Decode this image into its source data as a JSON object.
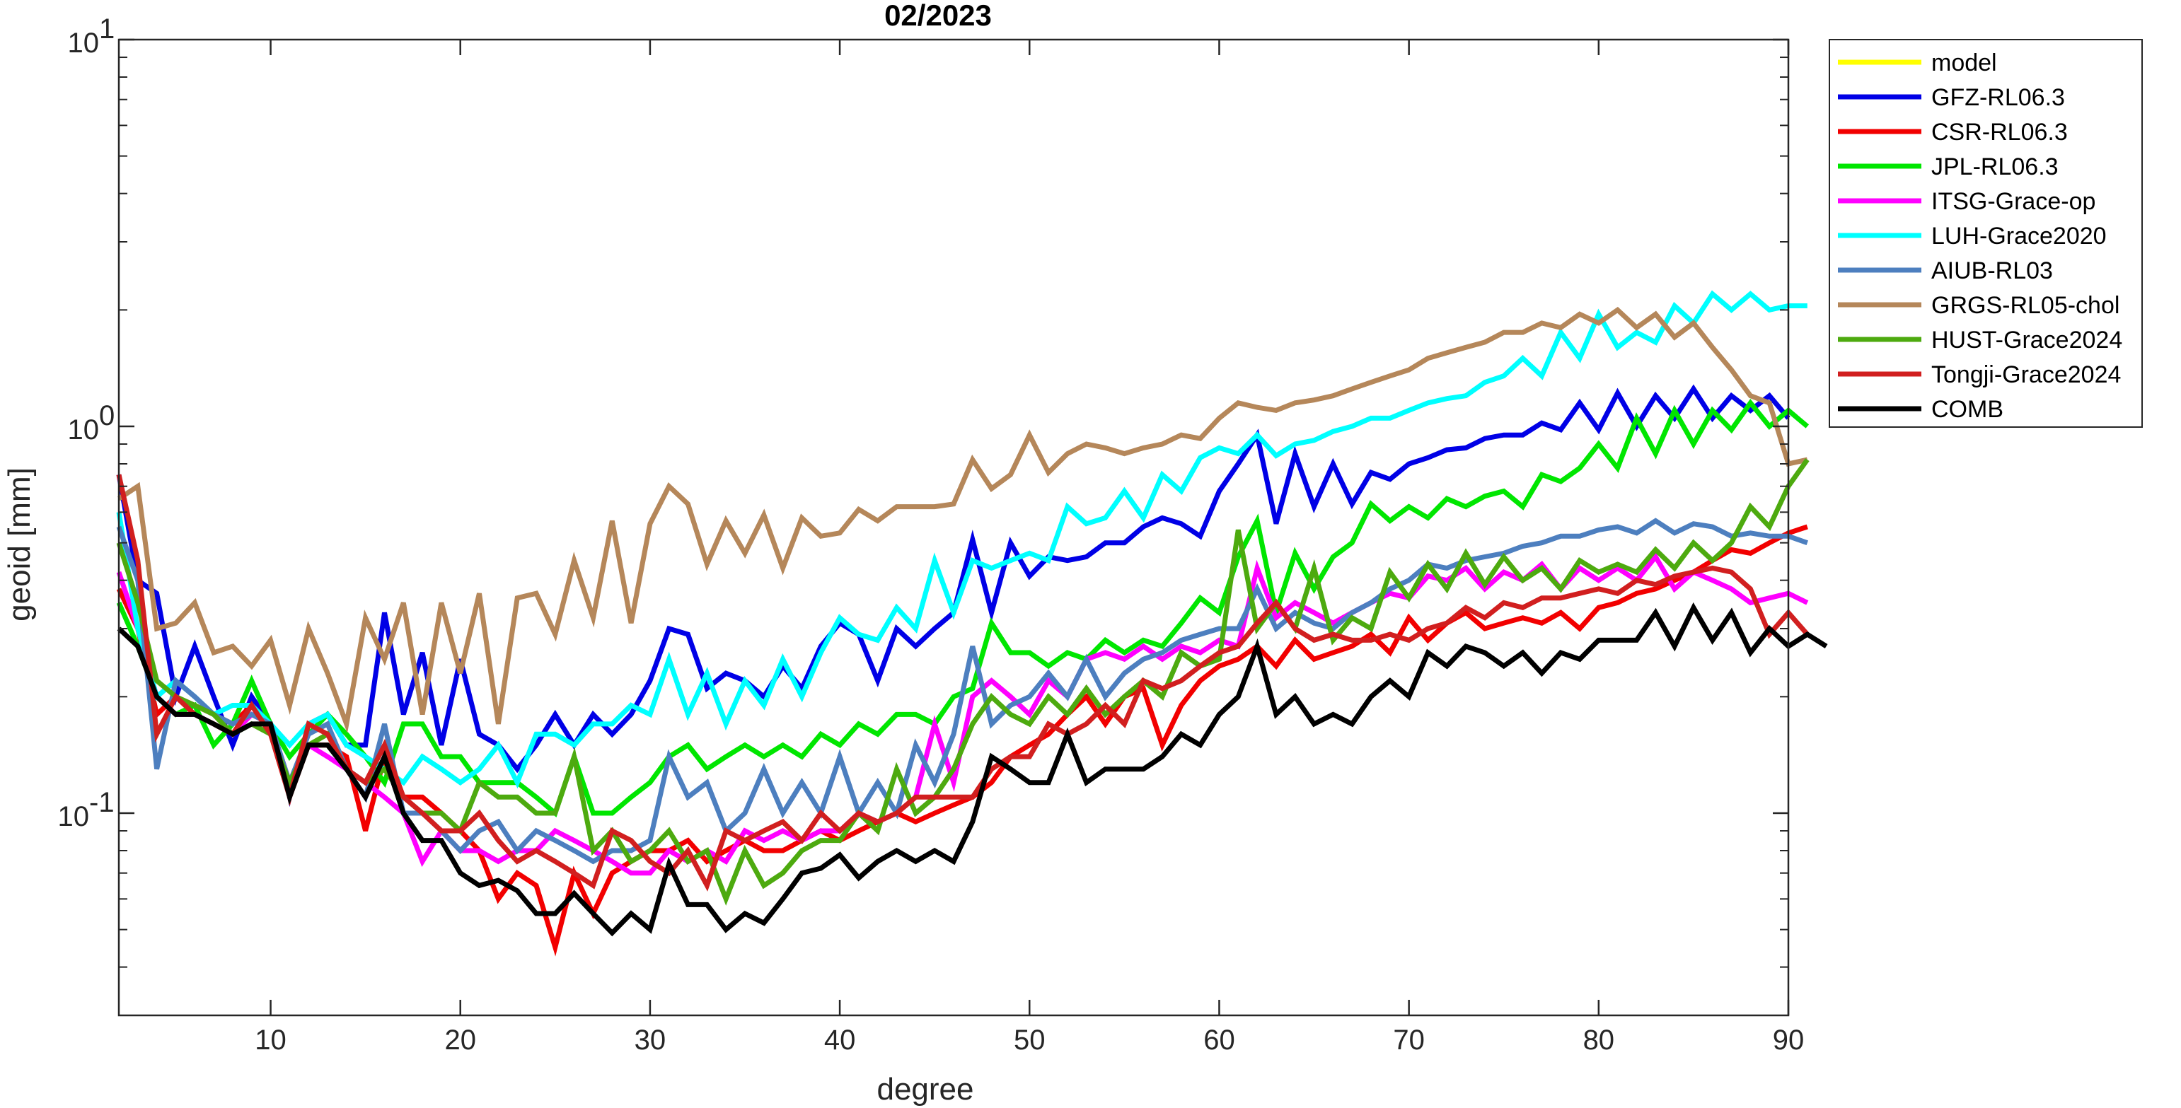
{
  "chart_data": {
    "type": "line",
    "title": "02/2023",
    "xlabel": "degree",
    "ylabel": "geoid [mm]",
    "xlim": [
      2,
      90
    ],
    "ylim": [
      0.03,
      10
    ],
    "yscale": "log",
    "xticks": [
      10,
      20,
      30,
      40,
      50,
      60,
      70,
      80,
      90
    ],
    "yticks": [
      {
        "value": 0.1,
        "base": "10",
        "exp": "-1"
      },
      {
        "value": 1,
        "base": "10",
        "exp": "0"
      },
      {
        "value": 10,
        "base": "10",
        "exp": "1"
      }
    ],
    "grid": false,
    "legend": "outside-right",
    "series": [
      {
        "name": "model",
        "color": "#FFFF00",
        "x": [],
        "values": []
      },
      {
        "name": "GFZ-RL06.3",
        "color": "#0000E6",
        "x_start": 2,
        "values": [
          0.75,
          0.4,
          0.37,
          0.2,
          0.27,
          0.2,
          0.15,
          0.2,
          0.17,
          0.11,
          0.17,
          0.18,
          0.15,
          0.15,
          0.33,
          0.18,
          0.26,
          0.15,
          0.25,
          0.16,
          0.15,
          0.13,
          0.15,
          0.18,
          0.15,
          0.18,
          0.16,
          0.18,
          0.22,
          0.3,
          0.29,
          0.21,
          0.23,
          0.22,
          0.2,
          0.24,
          0.21,
          0.27,
          0.31,
          0.29,
          0.22,
          0.3,
          0.27,
          0.3,
          0.33,
          0.51,
          0.33,
          0.5,
          0.41,
          0.46,
          0.45,
          0.46,
          0.5,
          0.5,
          0.55,
          0.58,
          0.56,
          0.52,
          0.68,
          0.8,
          0.95,
          0.56,
          0.85,
          0.62,
          0.8,
          0.63,
          0.76,
          0.73,
          0.8,
          0.83,
          0.87,
          0.88,
          0.93,
          0.95,
          0.95,
          1.02,
          0.98,
          1.15,
          0.98,
          1.22,
          1.0,
          1.2,
          1.05,
          1.25,
          1.05,
          1.2,
          1.1,
          1.2,
          1.05
        ]
      },
      {
        "name": "CSR-RL06.3",
        "color": "#F20000",
        "x_start": 2,
        "values": [
          0.38,
          0.3,
          0.18,
          0.2,
          0.19,
          0.18,
          0.17,
          0.19,
          0.17,
          0.11,
          0.15,
          0.15,
          0.14,
          0.09,
          0.14,
          0.11,
          0.11,
          0.1,
          0.09,
          0.08,
          0.06,
          0.07,
          0.065,
          0.045,
          0.07,
          0.055,
          0.07,
          0.075,
          0.08,
          0.08,
          0.085,
          0.075,
          0.08,
          0.085,
          0.08,
          0.08,
          0.085,
          0.09,
          0.085,
          0.09,
          0.095,
          0.1,
          0.095,
          0.1,
          0.105,
          0.11,
          0.12,
          0.14,
          0.15,
          0.16,
          0.18,
          0.2,
          0.17,
          0.2,
          0.21,
          0.15,
          0.19,
          0.22,
          0.24,
          0.25,
          0.27,
          0.24,
          0.28,
          0.25,
          0.26,
          0.27,
          0.29,
          0.26,
          0.32,
          0.28,
          0.31,
          0.33,
          0.3,
          0.31,
          0.32,
          0.31,
          0.33,
          0.3,
          0.34,
          0.35,
          0.37,
          0.38,
          0.4,
          0.42,
          0.45,
          0.48,
          0.47,
          0.5,
          0.53,
          0.55
        ]
      },
      {
        "name": "JPL-RL06.3",
        "color": "#00E600",
        "x_start": 2,
        "values": [
          0.35,
          0.27,
          0.2,
          0.18,
          0.19,
          0.15,
          0.17,
          0.22,
          0.17,
          0.14,
          0.16,
          0.18,
          0.16,
          0.14,
          0.12,
          0.17,
          0.17,
          0.14,
          0.14,
          0.12,
          0.12,
          0.12,
          0.11,
          0.1,
          0.14,
          0.1,
          0.1,
          0.11,
          0.12,
          0.14,
          0.15,
          0.13,
          0.14,
          0.15,
          0.14,
          0.15,
          0.14,
          0.16,
          0.15,
          0.17,
          0.16,
          0.18,
          0.18,
          0.17,
          0.2,
          0.21,
          0.31,
          0.26,
          0.26,
          0.24,
          0.26,
          0.25,
          0.28,
          0.26,
          0.28,
          0.27,
          0.31,
          0.36,
          0.33,
          0.46,
          0.57,
          0.33,
          0.47,
          0.38,
          0.46,
          0.5,
          0.63,
          0.57,
          0.62,
          0.58,
          0.65,
          0.62,
          0.66,
          0.68,
          0.62,
          0.75,
          0.72,
          0.78,
          0.9,
          0.78,
          1.05,
          0.85,
          1.1,
          0.9,
          1.1,
          0.98,
          1.15,
          1.0,
          1.1,
          1.0
        ]
      },
      {
        "name": "ITSG-Grace-op",
        "color": "#FF00FF",
        "x_start": 2,
        "values": [
          0.42,
          0.3,
          0.2,
          0.18,
          0.18,
          0.17,
          0.16,
          0.18,
          0.17,
          0.12,
          0.15,
          0.14,
          0.13,
          0.12,
          0.11,
          0.1,
          0.075,
          0.09,
          0.08,
          0.08,
          0.075,
          0.08,
          0.08,
          0.09,
          0.085,
          0.08,
          0.075,
          0.07,
          0.07,
          0.08,
          0.075,
          0.08,
          0.075,
          0.09,
          0.085,
          0.09,
          0.085,
          0.09,
          0.09,
          0.1,
          0.095,
          0.1,
          0.11,
          0.17,
          0.12,
          0.2,
          0.22,
          0.2,
          0.18,
          0.22,
          0.2,
          0.25,
          0.26,
          0.25,
          0.27,
          0.25,
          0.27,
          0.26,
          0.28,
          0.27,
          0.43,
          0.32,
          0.35,
          0.33,
          0.31,
          0.33,
          0.35,
          0.37,
          0.36,
          0.41,
          0.4,
          0.43,
          0.38,
          0.42,
          0.4,
          0.44,
          0.38,
          0.43,
          0.4,
          0.43,
          0.4,
          0.46,
          0.38,
          0.42,
          0.4,
          0.38,
          0.35,
          0.36,
          0.37,
          0.35
        ]
      },
      {
        "name": "LUH-Grace2020",
        "color": "#00FFFF",
        "x_start": 2,
        "values": [
          0.6,
          0.3,
          0.2,
          0.22,
          0.2,
          0.18,
          0.19,
          0.19,
          0.17,
          0.15,
          0.17,
          0.18,
          0.15,
          0.14,
          0.13,
          0.12,
          0.14,
          0.13,
          0.12,
          0.13,
          0.15,
          0.12,
          0.16,
          0.16,
          0.15,
          0.17,
          0.17,
          0.19,
          0.18,
          0.25,
          0.18,
          0.23,
          0.17,
          0.22,
          0.19,
          0.25,
          0.2,
          0.26,
          0.32,
          0.29,
          0.28,
          0.34,
          0.3,
          0.45,
          0.33,
          0.45,
          0.43,
          0.45,
          0.47,
          0.45,
          0.62,
          0.56,
          0.58,
          0.68,
          0.58,
          0.75,
          0.68,
          0.83,
          0.88,
          0.85,
          0.95,
          0.84,
          0.9,
          0.92,
          0.97,
          1.0,
          1.05,
          1.05,
          1.1,
          1.15,
          1.18,
          1.2,
          1.3,
          1.35,
          1.5,
          1.35,
          1.75,
          1.5,
          1.95,
          1.6,
          1.75,
          1.65,
          2.05,
          1.85,
          2.2,
          2.0,
          2.2,
          2.0,
          2.05,
          2.05
        ]
      },
      {
        "name": "AIUB-RL03",
        "color": "#4D7FBF",
        "x_start": 2,
        "values": [
          0.55,
          0.4,
          0.13,
          0.22,
          0.2,
          0.18,
          0.17,
          0.18,
          0.17,
          0.12,
          0.16,
          0.17,
          0.13,
          0.11,
          0.17,
          0.1,
          0.1,
          0.09,
          0.08,
          0.09,
          0.095,
          0.08,
          0.09,
          0.085,
          0.08,
          0.075,
          0.08,
          0.08,
          0.085,
          0.14,
          0.11,
          0.12,
          0.09,
          0.1,
          0.13,
          0.1,
          0.12,
          0.1,
          0.14,
          0.1,
          0.12,
          0.1,
          0.15,
          0.12,
          0.16,
          0.27,
          0.17,
          0.19,
          0.2,
          0.23,
          0.2,
          0.25,
          0.2,
          0.23,
          0.25,
          0.26,
          0.28,
          0.29,
          0.3,
          0.3,
          0.38,
          0.3,
          0.33,
          0.31,
          0.3,
          0.33,
          0.35,
          0.38,
          0.4,
          0.44,
          0.43,
          0.45,
          0.46,
          0.47,
          0.49,
          0.5,
          0.52,
          0.52,
          0.54,
          0.55,
          0.53,
          0.57,
          0.53,
          0.56,
          0.55,
          0.52,
          0.53,
          0.52,
          0.52,
          0.5
        ]
      },
      {
        "name": "GRGS-RL05-chol",
        "color": "#B5875A",
        "x_start": 2,
        "values": [
          0.65,
          0.7,
          0.3,
          0.31,
          0.35,
          0.26,
          0.27,
          0.24,
          0.28,
          0.19,
          0.3,
          0.23,
          0.17,
          0.32,
          0.25,
          0.35,
          0.18,
          0.35,
          0.23,
          0.37,
          0.17,
          0.36,
          0.37,
          0.29,
          0.45,
          0.32,
          0.57,
          0.31,
          0.56,
          0.7,
          0.63,
          0.44,
          0.57,
          0.47,
          0.59,
          0.43,
          0.58,
          0.52,
          0.53,
          0.61,
          0.57,
          0.62,
          0.62,
          0.62,
          0.63,
          0.82,
          0.69,
          0.75,
          0.95,
          0.76,
          0.85,
          0.9,
          0.88,
          0.85,
          0.88,
          0.9,
          0.95,
          0.93,
          1.05,
          1.15,
          1.12,
          1.1,
          1.15,
          1.17,
          1.2,
          1.25,
          1.3,
          1.35,
          1.4,
          1.5,
          1.55,
          1.6,
          1.65,
          1.75,
          1.75,
          1.85,
          1.8,
          1.95,
          1.85,
          2.0,
          1.8,
          1.95,
          1.7,
          1.85,
          1.6,
          1.4,
          1.2,
          1.15,
          0.8,
          0.82
        ]
      },
      {
        "name": "HUST-Grace2024",
        "color": "#4DAA0F",
        "x_start": 2,
        "values": [
          0.5,
          0.35,
          0.22,
          0.2,
          0.19,
          0.18,
          0.16,
          0.17,
          0.16,
          0.12,
          0.15,
          0.16,
          0.13,
          0.12,
          0.13,
          0.11,
          0.1,
          0.1,
          0.09,
          0.12,
          0.11,
          0.11,
          0.1,
          0.1,
          0.14,
          0.08,
          0.09,
          0.075,
          0.08,
          0.09,
          0.075,
          0.08,
          0.06,
          0.08,
          0.065,
          0.07,
          0.08,
          0.085,
          0.085,
          0.1,
          0.09,
          0.13,
          0.1,
          0.11,
          0.13,
          0.17,
          0.2,
          0.18,
          0.17,
          0.2,
          0.18,
          0.21,
          0.18,
          0.2,
          0.22,
          0.2,
          0.26,
          0.24,
          0.25,
          0.54,
          0.3,
          0.35,
          0.3,
          0.43,
          0.28,
          0.32,
          0.3,
          0.42,
          0.36,
          0.44,
          0.38,
          0.47,
          0.39,
          0.46,
          0.4,
          0.43,
          0.38,
          0.45,
          0.42,
          0.44,
          0.42,
          0.48,
          0.43,
          0.5,
          0.45,
          0.5,
          0.62,
          0.55,
          0.7,
          0.82
        ]
      },
      {
        "name": "Tongji-Grace2024",
        "color": "#D11F1F",
        "x_start": 2,
        "values": [
          0.75,
          0.45,
          0.16,
          0.2,
          0.18,
          0.17,
          0.16,
          0.19,
          0.16,
          0.11,
          0.17,
          0.16,
          0.13,
          0.12,
          0.15,
          0.11,
          0.1,
          0.09,
          0.09,
          0.1,
          0.085,
          0.075,
          0.08,
          0.075,
          0.07,
          0.065,
          0.09,
          0.085,
          0.075,
          0.07,
          0.08,
          0.065,
          0.09,
          0.085,
          0.09,
          0.095,
          0.085,
          0.1,
          0.09,
          0.1,
          0.095,
          0.1,
          0.11,
          0.11,
          0.11,
          0.11,
          0.13,
          0.14,
          0.14,
          0.17,
          0.16,
          0.17,
          0.19,
          0.17,
          0.22,
          0.21,
          0.22,
          0.24,
          0.26,
          0.27,
          0.31,
          0.35,
          0.3,
          0.28,
          0.29,
          0.28,
          0.28,
          0.29,
          0.28,
          0.3,
          0.31,
          0.34,
          0.32,
          0.35,
          0.34,
          0.36,
          0.36,
          0.37,
          0.38,
          0.37,
          0.4,
          0.39,
          0.41,
          0.42,
          0.43,
          0.42,
          0.38,
          0.29,
          0.33,
          0.29
        ]
      },
      {
        "name": "COMB",
        "color": "#000000",
        "x_start": 2,
        "values": [
          0.3,
          0.27,
          0.2,
          0.18,
          0.18,
          0.17,
          0.16,
          0.17,
          0.17,
          0.11,
          0.15,
          0.15,
          0.13,
          0.11,
          0.14,
          0.1,
          0.085,
          0.085,
          0.07,
          0.065,
          0.067,
          0.063,
          0.055,
          0.055,
          0.062,
          0.055,
          0.049,
          0.055,
          0.05,
          0.074,
          0.058,
          0.058,
          0.05,
          0.055,
          0.052,
          0.06,
          0.07,
          0.072,
          0.078,
          0.068,
          0.075,
          0.08,
          0.075,
          0.08,
          0.075,
          0.095,
          0.14,
          0.13,
          0.12,
          0.12,
          0.16,
          0.12,
          0.13,
          0.13,
          0.13,
          0.14,
          0.16,
          0.15,
          0.18,
          0.2,
          0.27,
          0.18,
          0.2,
          0.17,
          0.18,
          0.17,
          0.2,
          0.22,
          0.2,
          0.26,
          0.24,
          0.27,
          0.26,
          0.24,
          0.26,
          0.23,
          0.26,
          0.25,
          0.28,
          0.28,
          0.28,
          0.33,
          0.27,
          0.34,
          0.28,
          0.33,
          0.26,
          0.3,
          0.27,
          0.29,
          0.27
        ]
      }
    ]
  }
}
